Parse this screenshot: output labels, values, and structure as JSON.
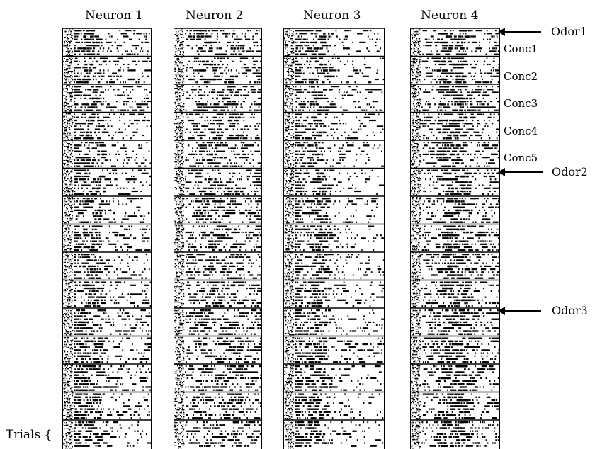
{
  "neurons": [
    {
      "label": "Neuron 1",
      "profile": "early"
    },
    {
      "label": "Neuron 2",
      "profile": "mid"
    },
    {
      "label": "Neuron 3",
      "profile": "onset"
    },
    {
      "label": "Neuron 4",
      "profile": "late"
    }
  ],
  "concentrations": [
    "Conc1",
    "Conc2",
    "Conc3",
    "Conc4",
    "Conc5"
  ],
  "odors": [
    "Odor1",
    "Odor2",
    "Odor3"
  ],
  "trials_label": "Trials {",
  "colors": {
    "spike": "#000000",
    "background": "#ffffff",
    "divider": "#000000"
  }
}
